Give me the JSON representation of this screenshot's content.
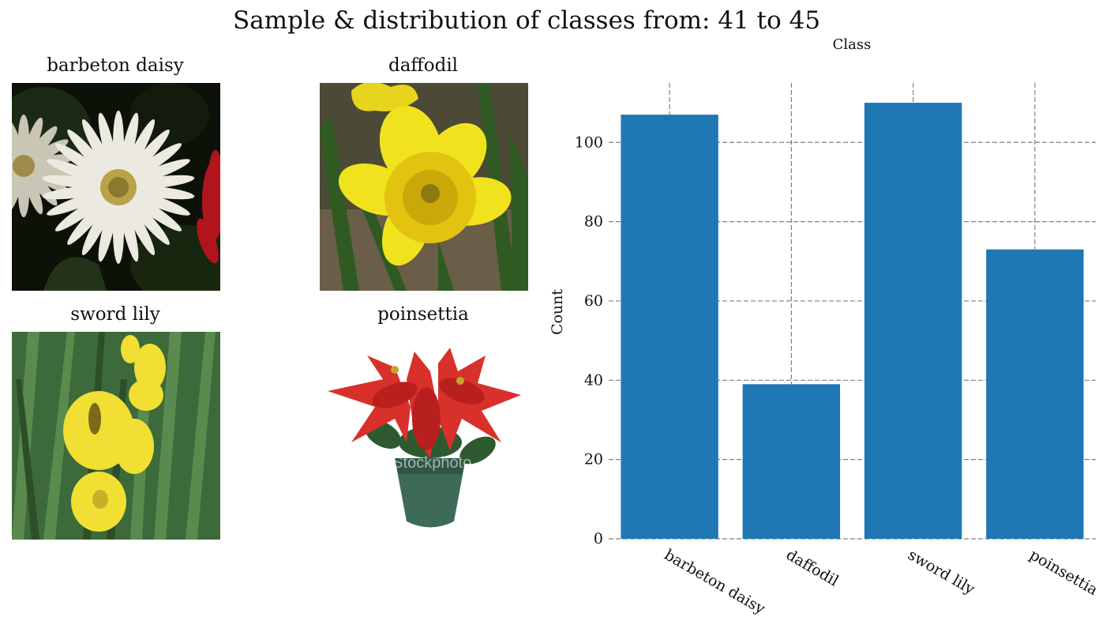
{
  "figure": {
    "title": "Sample & distribution of classes from: 41 to 45"
  },
  "samples": [
    {
      "label": "barbeton daisy"
    },
    {
      "label": "daffodil"
    },
    {
      "label": "sword lily"
    },
    {
      "label": "poinsettia"
    }
  ],
  "chart_data": {
    "type": "bar",
    "title": "Class",
    "xlabel": "",
    "ylabel": "Count",
    "categories": [
      "barbeton daisy",
      "daffodil",
      "sword lily",
      "poinsettia"
    ],
    "values": [
      107,
      39,
      110,
      73
    ],
    "ylim": [
      0,
      115
    ],
    "yticks": [
      0,
      20,
      40,
      60,
      80,
      100
    ],
    "grid": true,
    "bar_color": "#1f77b4",
    "grid_color": "#808080"
  },
  "watermark_text": "iStockphoto"
}
